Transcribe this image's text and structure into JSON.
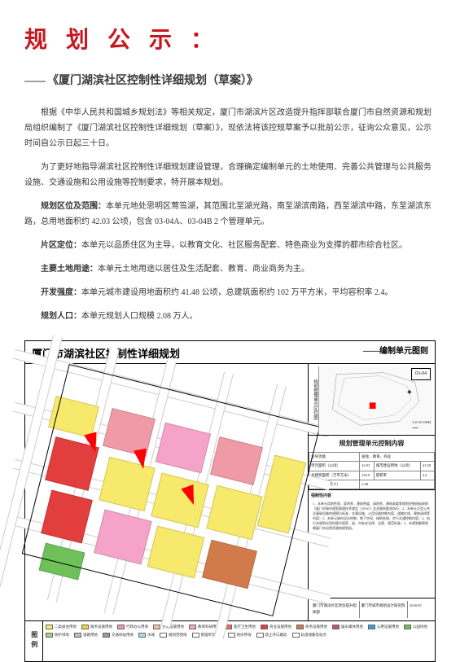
{
  "header": {
    "title": "规 划 公 示 ：",
    "subtitle_dash": "——",
    "subtitle": "《厦门湖滨社区控制性详细规划（草案）》"
  },
  "paragraphs": {
    "p1": "根据《中华人民共和国城乡规划法》等相关规定，厦门市湖滨片区改造提升指挥部联合厦门市自然资源和规划局组织编制了《厦门湖滨社区控制性详细规划（草案）》，现依法将该控规草案予以批前公示，征询公众意见，公示时间自公示日起三十日。",
    "p2": "为了更好地指导湖滨社区控制性详细规划建设管理，合理确定编制单元的土地使用、完善公共管理与公共服务设施、交通设施和公用设施等控制要求，特开展本规划。",
    "p3_label": "规划区位及范围：",
    "p3": "本单元地处思明区莺筜湖，其范围北至湖光路，南至湖滨南路，西至湖滨中路，东至湖滨东路，总用地面积约 42.03 公顷，包含 03-04A、03-04B 2 个管理单元。",
    "p4_label": "片区定位：",
    "p4": "本单元以品质住区为主导，以教育文化、社区服务配套、特色商业为支撑的都市综合社区。",
    "p5_label": "主要土地用途：",
    "p5": "本单元土地用途以居住及生活配套、教育、商业商务为主。",
    "p6_label": "开发强度：",
    "p6": "本单元城市建设用地面积约 41.48 公顷，总建筑面积约 102 万平方米，平均容积率 2.4。",
    "p7_label": "规划人口：",
    "p7": "本单元规划人口规模 2.08 万人。"
  },
  "diagram": {
    "title": "厦门市湖滨社区控制性详细规划",
    "header_right": "——编制单元图则",
    "unit_code": "03-04",
    "vertical_label1": "规划管理单元区位图",
    "vertical_label2": "莺筜湖 风貌保护区",
    "info_title": "规划管理单元控制内容",
    "table": {
      "r1c1": "主导功能",
      "r1c2": "居住、教育、商业",
      "r2c1": "单元面积（公顷）",
      "r2c2": "42.03",
      "r2c3": "城市建设用地（公顷）",
      "r2c4": "41.48",
      "r3c1": "总建筑面积（万平方米）",
      "r3c2": "102.0",
      "r3c3": "容积率",
      "r3c4": "2.4",
      "r4c1": "规划人口（万人）",
      "r4c2": "2.08"
    },
    "info_text_title": "强制性内容",
    "info_text": "1、本单元用地性质、容积率、建筑密度、绿地率、建筑高度等规划控制指标按照《厦门市城市规划管理技术规定（2016）》及本图则要求执行；2、本单元大型公共及基础设施的规模与标准、交通设施、公用设施控制内容，道路红线、建筑退线等内容；3、本单元城市设计控制、地下空间、绿地系统、步行交通控制内容；4、执行本规划应同时遵守国家、省、市有关法律、法规、规范标准；5、本规划解释权属厦门市自然资源和规划局。",
    "footer1": "厦门市湖滨片区改造提升指挥部",
    "footer2": "厦门市城市规划设计研究院",
    "footer3": "2020.05",
    "legend_label": "图例"
  },
  "legend": [
    {
      "color": "#f7e96b",
      "label": "二类居住用地"
    },
    {
      "color": "#f2d23a",
      "label": "服务设施用地"
    },
    {
      "color": "#f09aa8",
      "label": "行政办公用地"
    },
    {
      "color": "#f6bfa0",
      "label": "文化设施用地"
    },
    {
      "color": "#f5a3c8",
      "label": "教育科研用地"
    },
    {
      "color": "#e86b6b",
      "label": "医疗卫生用地"
    },
    {
      "color": "#e33e3e",
      "label": "商业设施用地"
    },
    {
      "color": "#d27b4a",
      "label": "商务设施用地"
    },
    {
      "color": "#c94b8e",
      "label": "娱乐康体用地"
    },
    {
      "color": "#3aa0d8",
      "label": "公用设施用地"
    },
    {
      "color": "#6ec15a",
      "label": "公园绿地"
    },
    {
      "color": "#9bd67d",
      "label": "防护绿地"
    },
    {
      "color": "#bfbfbf",
      "label": "道路用地"
    },
    {
      "color": "#9a9a9a",
      "label": "交通场站用地"
    },
    {
      "color": "#a9d8ef",
      "label": "水域"
    },
    {
      "color": "#ffffff",
      "label": "规划范围线"
    },
    {
      "color": "#ffffff",
      "label": "管理单元界线"
    },
    {
      "color": "#ffffff",
      "label": "地块界线"
    },
    {
      "color": "#ffffff",
      "label": "禁止开口路段"
    },
    {
      "color": "#ffffff",
      "label": "轨道线路及站点"
    }
  ],
  "map_colors": {
    "residential": "#f7e96b",
    "commercial": "#e33e3e",
    "education": "#f5a3c8",
    "office": "#f09aa8",
    "green": "#6ec15a",
    "business": "#d27b4a",
    "grey": "#bfbfbf"
  }
}
